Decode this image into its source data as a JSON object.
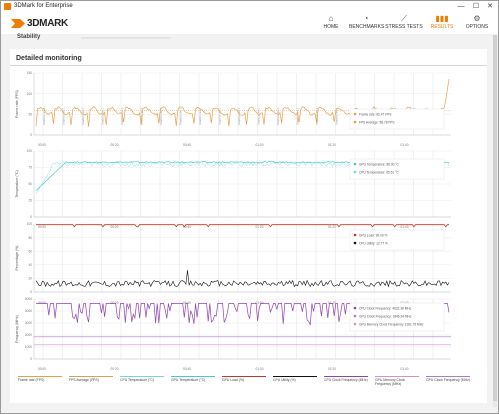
{
  "window": {
    "title": "3DMark for Enterprise",
    "controls": [
      "—",
      "☐",
      "✕"
    ]
  },
  "header": {
    "logo_text": "3DMARK",
    "nav": [
      {
        "label": "HOME",
        "icon": "home-icon",
        "glyph": "⌂",
        "active": false
      },
      {
        "label": "BENCHMARKS",
        "icon": "benchmarks-icon",
        "glyph": "◔",
        "active": false
      },
      {
        "label": "STRESS TESTS",
        "icon": "stress-tests-icon",
        "glyph": "⟋",
        "active": false
      },
      {
        "label": "RESULTS",
        "icon": "results-icon",
        "glyph": "▮▮▮",
        "active": true
      },
      {
        "label": "OPTIONS",
        "icon": "options-icon",
        "glyph": "⚙",
        "active": false
      }
    ]
  },
  "stability": {
    "label": "Stability"
  },
  "panel": {
    "title": "Detailed monitoring"
  },
  "colors": {
    "accent": "#f07c00",
    "frame_rate": "#e8a048",
    "fps_average": "#d4a060",
    "gpu_temp": "#45c8d0",
    "cpu_temp": "#70d8d8",
    "gpu_load": "#c0392b",
    "cpu_utility": "#111111",
    "cpu_clock": "#8e44ad",
    "gpu_clock": "#b07cc6",
    "gpu_mem_clock": "#d88ec8"
  },
  "chart_data": [
    {
      "type": "line",
      "ylabel": "Frame rate (FPS)",
      "y_ticks": [
        "150",
        "100",
        "50",
        "0"
      ],
      "ylim": [
        0,
        150
      ],
      "x_ticks": [
        "00:00",
        "00:20",
        "00:40",
        "01:00",
        "01:20",
        "01:40"
      ],
      "x_range_seconds": [
        0,
        120
      ],
      "series": [
        {
          "name": "Frame rate",
          "legend": "Frame rate: 60.47 FPS",
          "value": 60.47,
          "color": "#e8a048"
        },
        {
          "name": "FPS Average",
          "legend": "FPS Average: 58.78 FPS",
          "value": 58.78,
          "color": "#d4a060"
        }
      ],
      "loop_markers": [
        "Graphics test 1",
        "Graphics test 1",
        "Graphics test 1",
        "Graphics test 1",
        "Graphics test 1",
        "Graphics test 1",
        "Graphics test 1",
        "Graphics test 1",
        "Graphics test 1",
        "Graphics test 1",
        "Graphics test 1",
        "Graphics test 1",
        "Graphics test 1",
        "Graphics test 1",
        "Graphics test 1",
        "Graphics test 1",
        "Graphics test 1",
        "Graphics test 1",
        "Graphics test 1",
        "Graphics test 1"
      ]
    },
    {
      "type": "line",
      "ylabel": "Temperature (°C)",
      "y_ticks": [
        "100",
        "75",
        "50",
        "25",
        "0"
      ],
      "ylim": [
        0,
        100
      ],
      "x_ticks": [
        "00:00",
        "00:20",
        "00:40",
        "01:00",
        "01:20",
        "01:40"
      ],
      "series": [
        {
          "name": "GPU Temperature",
          "legend": "GPU Temperature: 86.00 °C",
          "value": 86.0,
          "color": "#45c8d0"
        },
        {
          "name": "CPU Temperature",
          "legend": "CPU Temperature: 65.51 °C",
          "value": 65.51,
          "color": "#70d8d8"
        }
      ]
    },
    {
      "type": "line",
      "ylabel": "Percentage (%)",
      "y_ticks": [
        "100",
        "80",
        "60",
        "40",
        "20",
        "0"
      ],
      "ylim": [
        0,
        100
      ],
      "x_ticks": [
        "00:00",
        "00:20",
        "00:40",
        "01:00",
        "01:20",
        "01:40"
      ],
      "series": [
        {
          "name": "GPU Load",
          "legend": "GPU Load: 99.00 %",
          "value": 99.0,
          "color": "#c0392b"
        },
        {
          "name": "CPU Utility",
          "legend": "CPU Utility: 12.77 %",
          "value": 12.77,
          "color": "#111111"
        }
      ]
    },
    {
      "type": "line",
      "ylabel": "Frequency (MHz)",
      "y_ticks": [
        "5000",
        "4000",
        "3000",
        "2000",
        "1000",
        "0"
      ],
      "ylim": [
        0,
        5000
      ],
      "x_ticks": [
        "00:00",
        "00:20",
        "00:40",
        "01:00",
        "01:20",
        "01:40"
      ],
      "series": [
        {
          "name": "CPU Clock Frequency",
          "legend": "CPU Clock Frequency: 4632.38 MHz",
          "value": 4632.38,
          "color": "#8e44ad"
        },
        {
          "name": "GPU Clock Frequency",
          "legend": "GPU Clock Frequency: 1846.34 MHz",
          "value": 1846.34,
          "color": "#b07cc6"
        },
        {
          "name": "GPU Memory Clock Frequency",
          "legend": "GPU Memory Clock Frequency: 1181.75 MHz",
          "value": 1181.75,
          "color": "#d88ec8"
        }
      ]
    }
  ],
  "bottom_legend": [
    {
      "label": "Frame rate (FPS)",
      "color": "#e8a048"
    },
    {
      "label": "FPS Average (FPS)",
      "color": "#d4a060"
    },
    {
      "label": "CPU Temperature (°C)",
      "color": "#70d8d8"
    },
    {
      "label": "GPU Temperature (°C)",
      "color": "#45c8d0"
    },
    {
      "label": "GPU Load (%)",
      "color": "#c0392b"
    },
    {
      "label": "CPU Utility (%)",
      "color": "#111111"
    },
    {
      "label": "CPU Clock Frequency (MHz)",
      "color": "#8e44ad"
    },
    {
      "label": "GPU Memory Clock Frequency (MHz)",
      "color": "#d88ec8"
    },
    {
      "label": "GPU Clock Frequency (MHz)",
      "color": "#b07cc6"
    }
  ]
}
